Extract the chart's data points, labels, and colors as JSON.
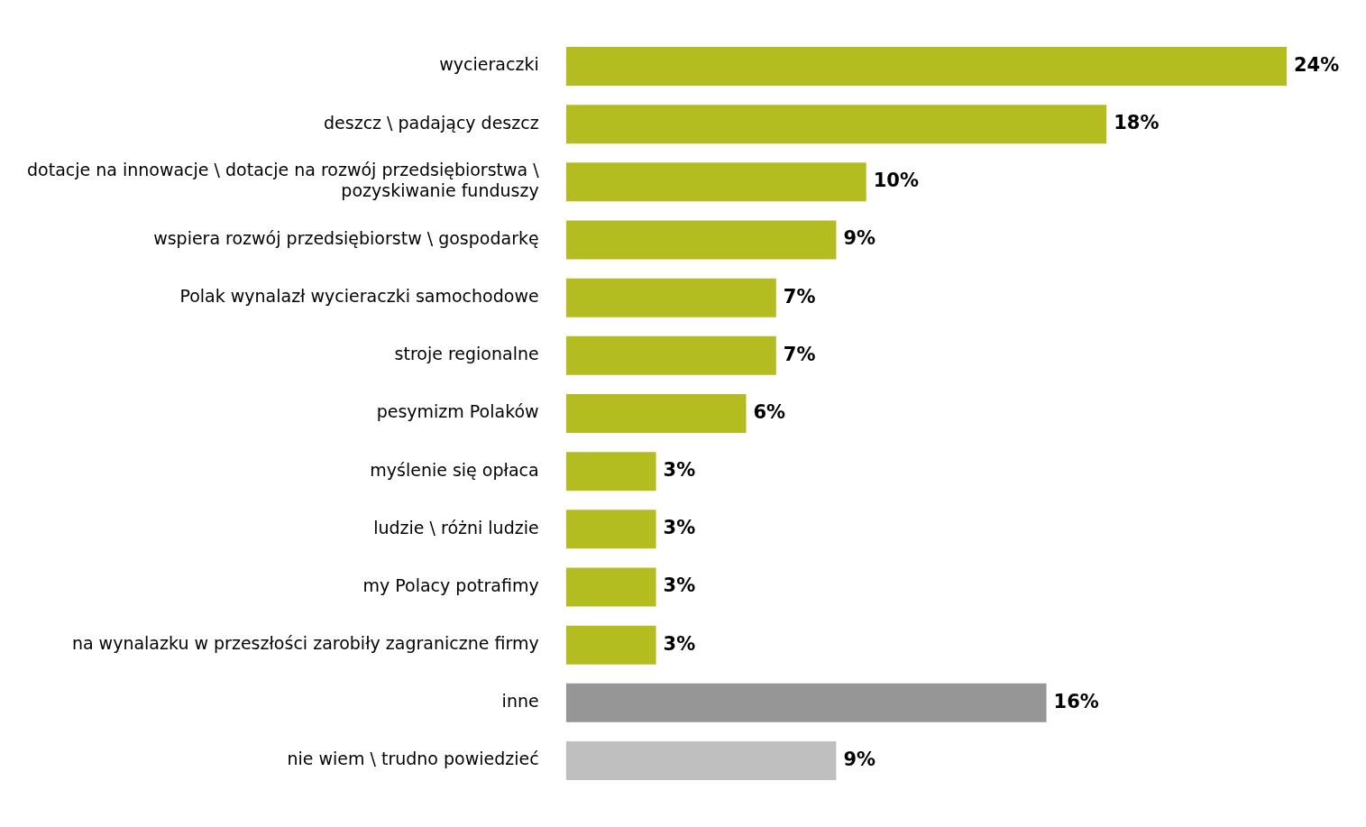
{
  "chart_data": {
    "type": "bar",
    "orientation": "horizontal",
    "categories": [
      "wycieraczki",
      "deszcz \\ padający deszcz",
      "dotacje na innowacje \\ dotacje na rozwój przedsiębiorstwa \\ pozyskiwanie funduszy",
      "wspiera rozwój przedsiębiorstw \\ gospodarkę",
      "Polak wynalazł wycieraczki samochodowe",
      "stroje regionalne",
      "pesymizm Polaków",
      "myślenie się opłaca",
      "ludzie \\ różni ludzie",
      "my Polacy potrafimy",
      "na wynalazku w przeszłości zarobiły zagraniczne firmy",
      "inne",
      "nie wiem \\ trudno powiedzieć"
    ],
    "values": [
      24,
      18,
      10,
      9,
      7,
      7,
      6,
      3,
      3,
      3,
      3,
      16,
      9
    ],
    "colors": [
      "#b3bd1f",
      "#b3bd1f",
      "#b3bd1f",
      "#b3bd1f",
      "#b3bd1f",
      "#b3bd1f",
      "#b3bd1f",
      "#b3bd1f",
      "#b3bd1f",
      "#b3bd1f",
      "#b3bd1f",
      "#969696",
      "#bfbfbf"
    ],
    "value_labels": [
      "24%",
      "18%",
      "10%",
      "9%",
      "7%",
      "7%",
      "6%",
      "3%",
      "3%",
      "3%",
      "3%",
      "16%",
      "9%"
    ],
    "legend": false
  }
}
